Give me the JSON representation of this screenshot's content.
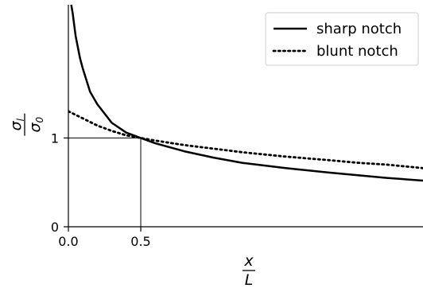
{
  "chart_data": {
    "type": "line",
    "x_ticks": [
      {
        "value": 0.0,
        "label": "0.0"
      },
      {
        "value": 0.5,
        "label": "0.5"
      }
    ],
    "y_ticks": [
      {
        "value": 0,
        "label": "0"
      },
      {
        "value": 1,
        "label": "1"
      }
    ],
    "xlabel_num": "x",
    "xlabel_den": "L",
    "ylabel_num": "σ",
    "ylabel_num_sub": "l",
    "ylabel_den": "σ",
    "ylabel_den_sub": "0",
    "xlim": [
      0,
      2.45
    ],
    "ylim": [
      0,
      2.5
    ],
    "grid": false,
    "legend_position": "top-right",
    "reference_point": {
      "x": 0.5,
      "y": 1
    },
    "series": [
      {
        "name": "sharp notch",
        "line_style": "solid",
        "color": "#000000",
        "x": [
          0.02,
          0.03,
          0.05,
          0.08,
          0.1,
          0.15,
          0.2,
          0.3,
          0.4,
          0.5,
          0.6,
          0.8,
          1.0,
          1.2,
          1.5,
          1.8,
          2.0,
          2.2,
          2.45
        ],
        "y": [
          2.5,
          2.4,
          2.15,
          1.9,
          1.78,
          1.52,
          1.38,
          1.17,
          1.06,
          1.0,
          0.94,
          0.85,
          0.78,
          0.72,
          0.66,
          0.61,
          0.58,
          0.55,
          0.52
        ]
      },
      {
        "name": "blunt notch",
        "line_style": "dotted",
        "color": "#000000",
        "x": [
          0.0,
          0.1,
          0.2,
          0.3,
          0.4,
          0.5,
          0.6,
          0.8,
          1.0,
          1.2,
          1.5,
          1.8,
          2.0,
          2.2,
          2.45
        ],
        "y": [
          1.3,
          1.22,
          1.14,
          1.08,
          1.03,
          1.0,
          0.97,
          0.92,
          0.88,
          0.84,
          0.79,
          0.75,
          0.72,
          0.7,
          0.66
        ]
      }
    ]
  }
}
